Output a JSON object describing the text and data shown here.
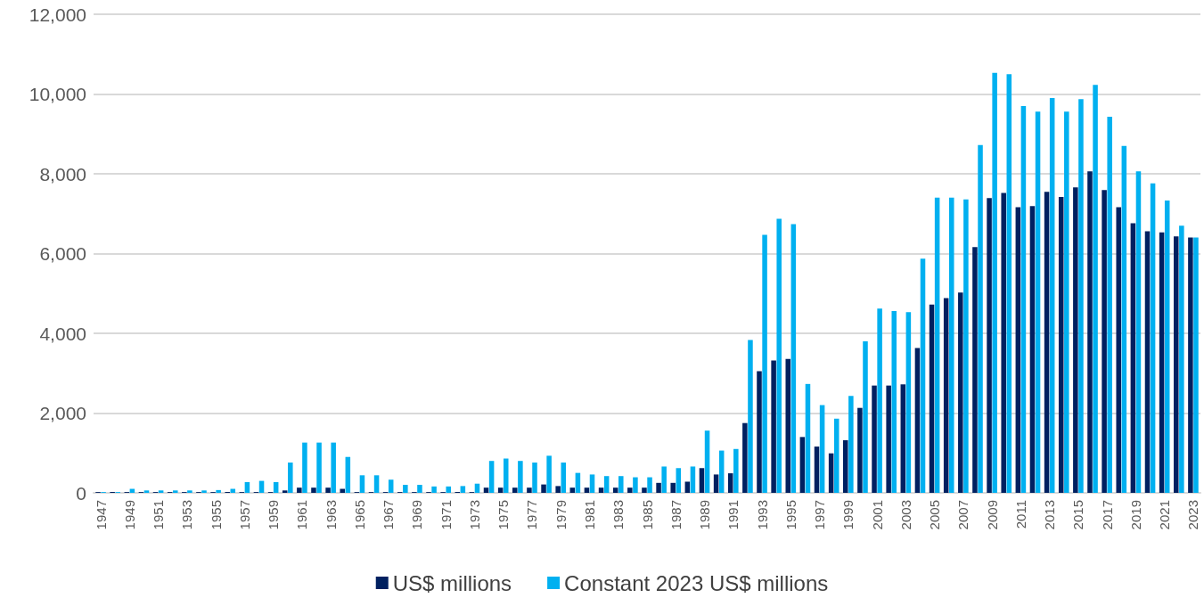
{
  "chart_data": {
    "type": "bar",
    "categories": [
      "1947",
      null,
      "1949",
      null,
      "1951",
      null,
      "1953",
      null,
      "1955",
      null,
      "1957",
      null,
      "1959",
      null,
      "1961",
      null,
      "1963",
      null,
      "1965",
      null,
      "1967",
      null,
      "1969",
      null,
      "1971",
      null,
      "1973",
      null,
      "1975",
      null,
      "1977",
      null,
      "1979",
      null,
      "1981",
      null,
      "1983",
      null,
      "1985",
      null,
      "1987",
      null,
      "1989",
      null,
      "1991",
      null,
      "1993",
      null,
      "1995",
      null,
      "1997",
      null,
      "1999",
      null,
      "2001",
      null,
      "2003",
      null,
      "2005",
      null,
      "2007",
      null,
      "2009",
      null,
      "2011",
      null,
      "2013",
      null,
      "2015",
      null,
      "2017",
      null,
      "2019",
      null,
      "2021",
      null,
      "2023"
    ],
    "series": [
      {
        "name": "US$ millions",
        "color": "#002060",
        "values": [
          20,
          20,
          20,
          20,
          20,
          20,
          20,
          20,
          20,
          20,
          20,
          20,
          20,
          60,
          130,
          130,
          130,
          100,
          20,
          20,
          20,
          20,
          20,
          20,
          20,
          20,
          20,
          130,
          130,
          130,
          130,
          210,
          170,
          130,
          130,
          130,
          130,
          130,
          130,
          250,
          250,
          280,
          620,
          460,
          490,
          1750,
          3050,
          3320,
          3360,
          1400,
          1160,
          990,
          1320,
          2130,
          2690,
          2690,
          2720,
          3630,
          4720,
          4880,
          5020,
          6160,
          7390,
          7520,
          7160,
          7190,
          7550,
          7420,
          7660,
          8060,
          7590,
          7160,
          6760,
          6560,
          6530,
          6430,
          6400
        ]
      },
      {
        "name": "Constant 2023 US$ millions",
        "color": "#00b0f0",
        "values": [
          20,
          20,
          100,
          60,
          60,
          60,
          60,
          60,
          70,
          100,
          270,
          300,
          270,
          760,
          1260,
          1260,
          1260,
          900,
          440,
          440,
          330,
          200,
          200,
          160,
          160,
          170,
          230,
          800,
          860,
          800,
          760,
          930,
          760,
          500,
          460,
          420,
          420,
          390,
          390,
          660,
          620,
          660,
          1560,
          1060,
          1100,
          3830,
          6470,
          6870,
          6740,
          2730,
          2200,
          1860,
          2430,
          3800,
          4620,
          4560,
          4530,
          5870,
          7400,
          7400,
          7360,
          8720,
          10530,
          10500,
          9700,
          9560,
          9900,
          9560,
          9870,
          10230,
          9430,
          8700,
          8060,
          7760,
          7330,
          6700,
          6400
        ]
      }
    ],
    "ylim": [
      0,
      12000
    ],
    "yticks": [
      0,
      {
        "value": 2000,
        "label": "2,000"
      },
      {
        "value": 4000,
        "label": "4,000"
      },
      {
        "value": 6000,
        "label": "6,000"
      },
      {
        "value": 8000,
        "label": "8,000"
      },
      {
        "value": 10000,
        "label": "10,000"
      },
      {
        "value": 12000,
        "label": "12,000"
      }
    ],
    "grid": "y",
    "legend": "bottom"
  }
}
